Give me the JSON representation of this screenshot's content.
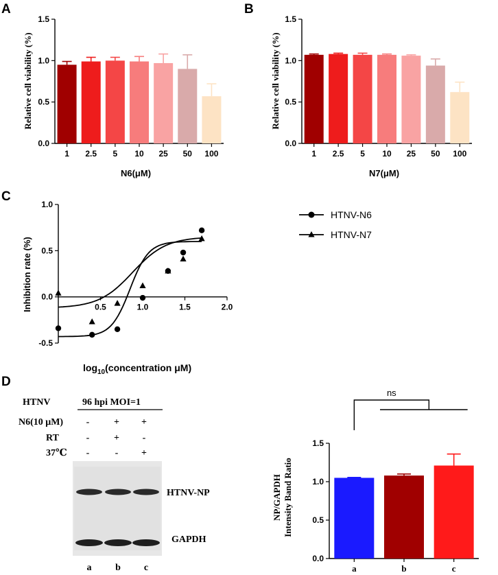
{
  "chart_data": [
    {
      "panel": "A",
      "type": "bar",
      "categories": [
        "1",
        "2.5",
        "5",
        "10",
        "25",
        "50",
        "100"
      ],
      "values": [
        0.95,
        0.99,
        1.0,
        0.99,
        0.97,
        0.9,
        0.57
      ],
      "errors": [
        0.04,
        0.05,
        0.04,
        0.06,
        0.11,
        0.17,
        0.15
      ],
      "colors": [
        "#a00000",
        "#ee1c1c",
        "#f44646",
        "#f77c7c",
        "#f9a3a3",
        "#d9aaaa",
        "#fde3c4"
      ],
      "yticks": [
        "0.0",
        "0.5",
        "1.0",
        "1.5"
      ],
      "ylim": [
        0,
        1.5
      ],
      "xlabel": "N6(μM)",
      "ylabel": "Relative cell viability (%)"
    },
    {
      "panel": "B",
      "type": "bar",
      "categories": [
        "1",
        "2.5",
        "5",
        "10",
        "25",
        "50",
        "100"
      ],
      "values": [
        1.07,
        1.08,
        1.07,
        1.07,
        1.06,
        0.94,
        0.62
      ],
      "errors": [
        0.01,
        0.01,
        0.02,
        0.01,
        0.01,
        0.08,
        0.12
      ],
      "colors": [
        "#a00000",
        "#ee1c1c",
        "#f44646",
        "#f77c7c",
        "#f9a3a3",
        "#d9aaaa",
        "#fde3c4"
      ],
      "yticks": [
        "0.0",
        "0.5",
        "1.0",
        "1.5"
      ],
      "ylim": [
        0,
        1.5
      ],
      "xlabel": "N7(μM)",
      "ylabel": "Relative cell viability (%)"
    },
    {
      "panel": "C",
      "type": "scatter",
      "xlabel_main": "log",
      "xlabel_sub": "10",
      "xlabel_rest": "(concentration μM)",
      "ylabel": "Inhibition rate (%)",
      "xlim": [
        0,
        2.0
      ],
      "ylim": [
        -0.5,
        1.0
      ],
      "xticks": [
        "0.5",
        "1.0",
        "1.5",
        "2.0"
      ],
      "yticks": [
        "-0.5",
        "0.0",
        "0.5",
        "1.0"
      ],
      "series": [
        {
          "name": "HTNV-N6",
          "marker": "circle",
          "x": [
            0.0,
            0.4,
            0.7,
            1.0,
            1.3,
            1.48,
            1.7
          ],
          "y": [
            -0.34,
            -0.41,
            -0.35,
            -0.01,
            0.28,
            0.48,
            0.72
          ],
          "fit": [
            -0.43,
            0.6,
            0.85,
            9
          ]
        },
        {
          "name": "HTNV-N7",
          "marker": "triangle",
          "x": [
            0.0,
            0.4,
            0.7,
            1.0,
            1.3,
            1.48,
            1.7
          ],
          "y": [
            0.04,
            -0.27,
            -0.07,
            0.12,
            0.28,
            0.41,
            0.63
          ],
          "fit": [
            -0.12,
            0.65,
            0.88,
            5
          ]
        }
      ]
    },
    {
      "panel": "D-bar",
      "type": "bar",
      "categories": [
        "a",
        "b",
        "c"
      ],
      "values": [
        1.05,
        1.08,
        1.21
      ],
      "errors": [
        0.005,
        0.02,
        0.15
      ],
      "colors": [
        "#1a1aff",
        "#a00000",
        "#ff1a1a"
      ],
      "yticks": [
        "0.0",
        "0.5",
        "1.0",
        "1.5"
      ],
      "ylim": [
        0,
        1.5
      ],
      "ylabel_line1": "NP/GAPDH",
      "ylabel_line2": "Intensity Band Ratio",
      "annotation": "ns"
    }
  ],
  "panel_labels": {
    "a": "A",
    "b": "B",
    "c": "C",
    "d": "D"
  },
  "blot": {
    "htnv_label": "HTNV",
    "header": "96 hpi MOI=1",
    "rows": [
      {
        "label": "N6(10 μM)",
        "marks": [
          "-",
          "+",
          "+"
        ]
      },
      {
        "label": "RT",
        "marks": [
          "-",
          "+",
          "-"
        ]
      },
      {
        "label": "37℃",
        "marks": [
          "-",
          "-",
          "+"
        ]
      }
    ],
    "band1_label": "HTNV-NP",
    "band2_label": "GAPDH",
    "lanes": [
      "a",
      "b",
      "c"
    ]
  }
}
